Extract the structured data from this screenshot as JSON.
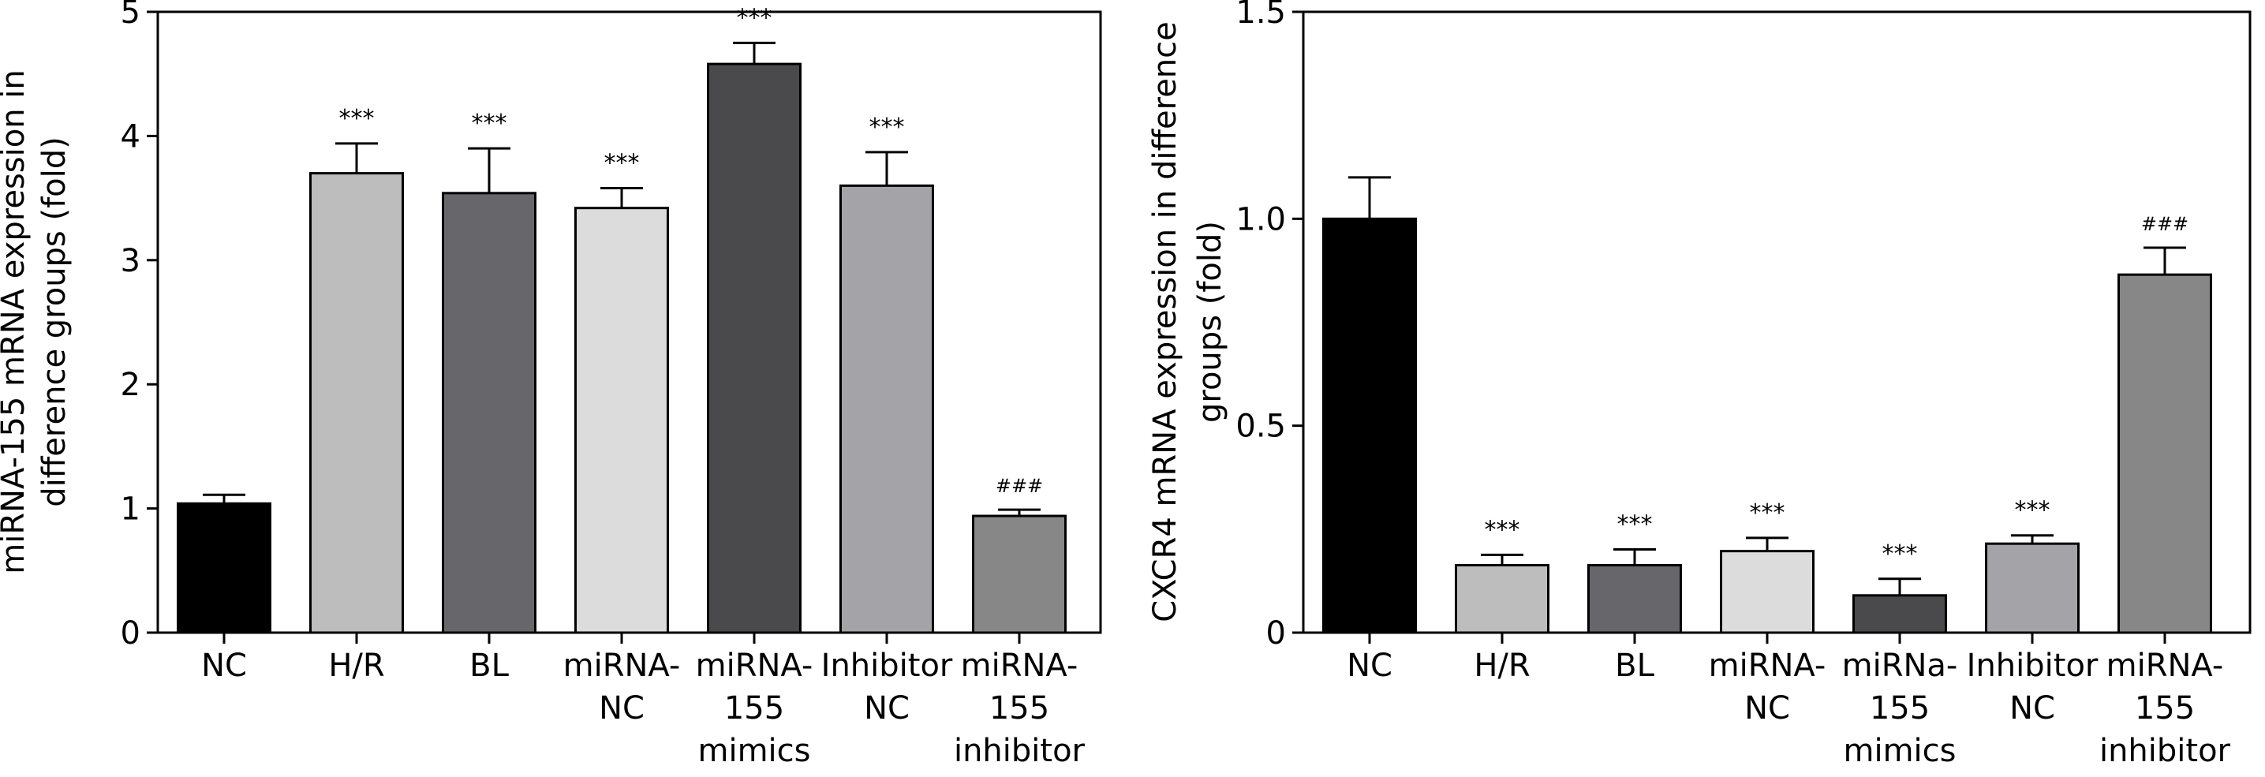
{
  "chart_data": [
    {
      "type": "bar",
      "ylabel": [
        "miRNA-155 mRNA expression in",
        "difference groups (fold)"
      ],
      "ylim": [
        0,
        5
      ],
      "yticks": [
        0,
        1,
        2,
        3,
        4,
        5
      ],
      "ytick_labels": [
        "0",
        "1",
        "2",
        "3",
        "4",
        "5"
      ],
      "categories": [
        [
          "NC"
        ],
        [
          "H/R"
        ],
        [
          "BL"
        ],
        [
          "miRNA-",
          "NC"
        ],
        [
          "miRNA-",
          "155",
          "mimics"
        ],
        [
          "Inhibitor",
          "NC"
        ],
        [
          "miRNA-",
          "155",
          "inhibitor"
        ]
      ],
      "values": [
        1.04,
        3.7,
        3.54,
        3.42,
        4.58,
        3.6,
        0.94
      ],
      "errors": [
        0.07,
        0.24,
        0.36,
        0.16,
        0.17,
        0.27,
        0.05
      ],
      "colors": [
        "#000000",
        "#bdbdbd",
        "#67676b",
        "#dcdcdd",
        "#4a4a4c",
        "#a4a4a8",
        "#878787"
      ],
      "annotations": [
        "",
        "***",
        "***",
        "***",
        "***",
        "***",
        "###"
      ],
      "grid": false
    },
    {
      "type": "bar",
      "ylabel": [
        "CXCR4 mRNA expression in difference",
        "groups (fold)"
      ],
      "ylim": [
        0,
        1.5
      ],
      "yticks": [
        0,
        0.5,
        1.0,
        1.5
      ],
      "ytick_labels": [
        "0",
        "0.5",
        "1.0",
        "1.5"
      ],
      "categories": [
        [
          "NC"
        ],
        [
          "H/R"
        ],
        [
          "BL"
        ],
        [
          "miRNA-",
          "NC"
        ],
        [
          "miRNa-",
          "155",
          "mimics"
        ],
        [
          "Inhibitor",
          "NC"
        ],
        [
          "miRNA-",
          "155",
          "inhibitor"
        ]
      ],
      "values": [
        1.0,
        0.163,
        0.163,
        0.197,
        0.09,
        0.215,
        0.865
      ],
      "errors": [
        0.1,
        0.025,
        0.038,
        0.032,
        0.04,
        0.02,
        0.065
      ],
      "colors": [
        "#000000",
        "#bdbdbd",
        "#67676b",
        "#dcdcdd",
        "#4a4a4c",
        "#a4a4a8",
        "#878787"
      ],
      "annotations": [
        "",
        "***",
        "***",
        "***",
        "***",
        "***",
        "###"
      ],
      "grid": false
    }
  ]
}
